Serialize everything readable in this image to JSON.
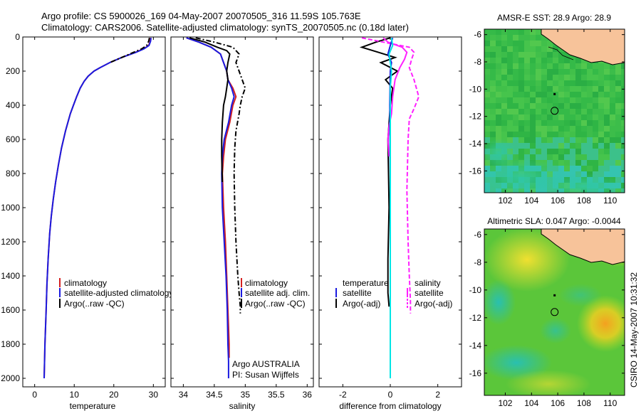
{
  "header": {
    "line1": "Argo profile: CS 5900026_169 04-May-2007 20070505_316 11.59S 105.763E",
    "line2": "Climatology: CARS2006. Satellite-adjusted climatology: synTS_20070505.nc (0.18d later)"
  },
  "side_label": "CSIRO 14-May-2007 10:31:32",
  "chart_data": [
    {
      "type": "line",
      "xlabel": "temperature",
      "xlim": [
        -3,
        33
      ],
      "ylim": [
        2050,
        0
      ],
      "xticks": [
        0,
        10,
        20,
        30
      ],
      "yticks": [
        0,
        200,
        400,
        600,
        800,
        1000,
        1200,
        1400,
        1600,
        1800,
        2000
      ],
      "legend": [
        "climatology",
        "satellite-adjusted climatology",
        "Argo(..raw -QC)"
      ],
      "series": [
        {
          "color": "#d42020",
          "style": "solid",
          "x": [
            29.3,
            29.2,
            28.8,
            27.5,
            25.5,
            22.0,
            19.0,
            16.5,
            15.0,
            13.5,
            12.5,
            11.5,
            10.6,
            9.8,
            9.0,
            7.8,
            6.8,
            6.0,
            5.3,
            4.7,
            4.2,
            3.8,
            3.4,
            3.1,
            2.9,
            2.6,
            2.4
          ],
          "y": [
            5,
            25,
            50,
            70,
            90,
            120,
            150,
            180,
            200,
            230,
            260,
            300,
            350,
            400,
            450,
            550,
            650,
            750,
            850,
            950,
            1050,
            1150,
            1300,
            1450,
            1600,
            1800,
            2000
          ]
        },
        {
          "color": "#1a1ae0",
          "style": "solid",
          "x": [
            29.4,
            29.3,
            28.9,
            27.6,
            25.6,
            22.0,
            19.0,
            16.5,
            15.0,
            13.5,
            12.5,
            11.5,
            10.6,
            9.8,
            9.0,
            7.8,
            6.8,
            6.0,
            5.3,
            4.7,
            4.2,
            3.8,
            3.4,
            3.1,
            2.9,
            2.6,
            2.4
          ],
          "y": [
            5,
            25,
            50,
            70,
            90,
            120,
            150,
            180,
            200,
            230,
            260,
            300,
            350,
            400,
            450,
            550,
            650,
            750,
            850,
            950,
            1050,
            1150,
            1300,
            1450,
            1600,
            1800,
            2000
          ]
        },
        {
          "color": "#000000",
          "style": "dashdot",
          "x": [
            29.0,
            28.8,
            28.3,
            27.0,
            25.0,
            22.0,
            19.0
          ],
          "y": [
            5,
            25,
            50,
            70,
            90,
            120,
            150
          ]
        }
      ]
    },
    {
      "type": "line",
      "xlabel": "salinity",
      "xlim": [
        33.8,
        36.1
      ],
      "ylim": [
        2050,
        0
      ],
      "xticks": [
        34,
        34.5,
        35,
        35.5,
        36
      ],
      "yticks": [
        0,
        200,
        400,
        600,
        800,
        1000,
        1200,
        1400,
        1600,
        1800,
        2000
      ],
      "legend": [
        "climatology",
        "satellite adj. clim.",
        "Argo(..raw -QC)"
      ],
      "annotation": [
        "Argo AUSTRALIA",
        "PI: Susan Wijffels"
      ],
      "series": [
        {
          "color": "#d42020",
          "style": "solid",
          "x": [
            34.05,
            34.25,
            34.45,
            34.6,
            34.65,
            34.7,
            34.72,
            34.8,
            34.85,
            34.8,
            34.75,
            34.68,
            34.65,
            34.63,
            34.65,
            34.68,
            34.7,
            34.72,
            34.73,
            34.74,
            34.74
          ],
          "y": [
            5,
            30,
            60,
            100,
            150,
            200,
            250,
            300,
            350,
            400,
            500,
            600,
            700,
            800,
            1000,
            1200,
            1400,
            1600,
            1700,
            1800,
            1880
          ]
        },
        {
          "color": "#1a1ae0",
          "style": "solid",
          "x": [
            34.05,
            34.25,
            34.45,
            34.6,
            34.65,
            34.7,
            34.72,
            34.78,
            34.82,
            34.78,
            34.73,
            34.66,
            34.63,
            34.62,
            34.63,
            34.66,
            34.69,
            34.71,
            34.72,
            34.73,
            34.73
          ],
          "y": [
            5,
            30,
            60,
            100,
            150,
            200,
            250,
            300,
            350,
            400,
            500,
            600,
            700,
            800,
            1000,
            1200,
            1400,
            1600,
            1800,
            1900,
            2000
          ]
        },
        {
          "color": "#000000",
          "style": "solid",
          "x": [
            34.1,
            34.35,
            34.55,
            34.7,
            34.75,
            34.72,
            34.7,
            34.72,
            34.7,
            34.68,
            34.65,
            34.63,
            34.62,
            34.62,
            34.63
          ],
          "y": [
            5,
            30,
            60,
            80,
            100,
            150,
            200,
            250,
            300,
            350,
            400,
            500,
            600,
            700,
            850
          ]
        },
        {
          "color": "#000000",
          "style": "dashdot",
          "x": [
            34.2,
            34.5,
            34.8,
            34.9,
            34.85,
            34.9,
            35.0,
            34.95,
            34.92,
            34.9,
            34.85,
            34.83,
            34.82,
            34.83,
            34.85,
            34.88,
            34.9,
            34.92,
            34.92
          ],
          "y": [
            5,
            30,
            60,
            100,
            150,
            200,
            300,
            350,
            400,
            450,
            550,
            650,
            800,
            1000,
            1200,
            1400,
            1500,
            1580,
            1620
          ]
        }
      ]
    },
    {
      "type": "line",
      "xlabel": "difference from climatology",
      "xlim": [
        -3,
        3
      ],
      "ylim": [
        2050,
        0
      ],
      "xticks": [
        -2,
        0,
        2
      ],
      "yticks": [
        0,
        200,
        400,
        600,
        800,
        1000,
        1200,
        1400,
        1600,
        1800,
        2000
      ],
      "legend_left": [
        "temperature",
        "satellite",
        "Argo(-adj)"
      ],
      "legend_right": [
        "salinity",
        "satellite",
        "Argo(-adj)"
      ],
      "series": [
        {
          "color": "#000000",
          "style": "solid",
          "x": [
            0,
            -0.6,
            -1.2,
            -0.5,
            0.2,
            -0.4,
            0.3,
            -0.2,
            0.1,
            0.0,
            -0.1,
            -0.05,
            -0.1,
            -0.1,
            -0.05
          ],
          "y": [
            5,
            30,
            60,
            90,
            120,
            150,
            200,
            250,
            300,
            400,
            600,
            1000,
            1300,
            1500,
            1580
          ]
        },
        {
          "color": "#ff20ff",
          "style": "solid",
          "x": [
            -0.3,
            -0.1,
            0.5,
            0.7,
            0.6,
            0.4,
            0.2,
            0.1,
            0.05,
            -0.05,
            -0.1,
            -0.05
          ],
          "y": [
            5,
            30,
            60,
            90,
            130,
            180,
            250,
            350,
            450,
            520,
            600,
            700
          ]
        },
        {
          "color": "#ff20ff",
          "style": "dashed",
          "x": [
            -1.2,
            -0.3,
            0.8,
            1.0,
            0.9,
            0.8,
            1.0,
            1.2,
            1.0,
            0.8,
            0.75,
            0.7,
            0.75,
            0.8,
            0.85,
            0.85
          ],
          "y": [
            5,
            30,
            60,
            90,
            130,
            180,
            250,
            350,
            420,
            480,
            600,
            900,
            1200,
            1400,
            1550,
            1620
          ]
        },
        {
          "color": "#1a1ae0",
          "style": "solid",
          "x": [
            0.1,
            0.0,
            -0.1,
            0.05,
            0.0,
            -0.02,
            0.0,
            0.0,
            0.0
          ],
          "y": [
            5,
            50,
            100,
            150,
            200,
            400,
            800,
            1200,
            2000
          ]
        },
        {
          "color": "#00e5e5",
          "style": "solid",
          "x": [
            0.05,
            0.1,
            -0.05,
            0.05,
            0.0,
            0.0,
            0.0,
            0.0
          ],
          "y": [
            5,
            50,
            100,
            200,
            300,
            600,
            1200,
            2000
          ]
        }
      ]
    },
    {
      "type": "heatmap",
      "title": "AMSR-E SST: 28.9 Argo: 28.9",
      "xlim": [
        100.4,
        111.1
      ],
      "ylim": [
        -17.6,
        -5.6
      ],
      "xticks": [
        102,
        104,
        106,
        108,
        110
      ],
      "yticks": [
        -6,
        -8,
        -10,
        -12,
        -14,
        -16
      ],
      "land_color": "#f7c39a",
      "float_position": [
        105.76,
        -11.59
      ]
    },
    {
      "type": "heatmap",
      "title": "Altimetric SLA: 0.047 Argo: -0.0044",
      "xlim": [
        100.4,
        111.1
      ],
      "ylim": [
        -17.6,
        -5.6
      ],
      "xticks": [
        102,
        104,
        106,
        108,
        110
      ],
      "yticks": [
        -6,
        -8,
        -10,
        -12,
        -14,
        -16
      ],
      "land_color": "#f7c39a",
      "float_position": [
        105.76,
        -11.59
      ]
    }
  ]
}
